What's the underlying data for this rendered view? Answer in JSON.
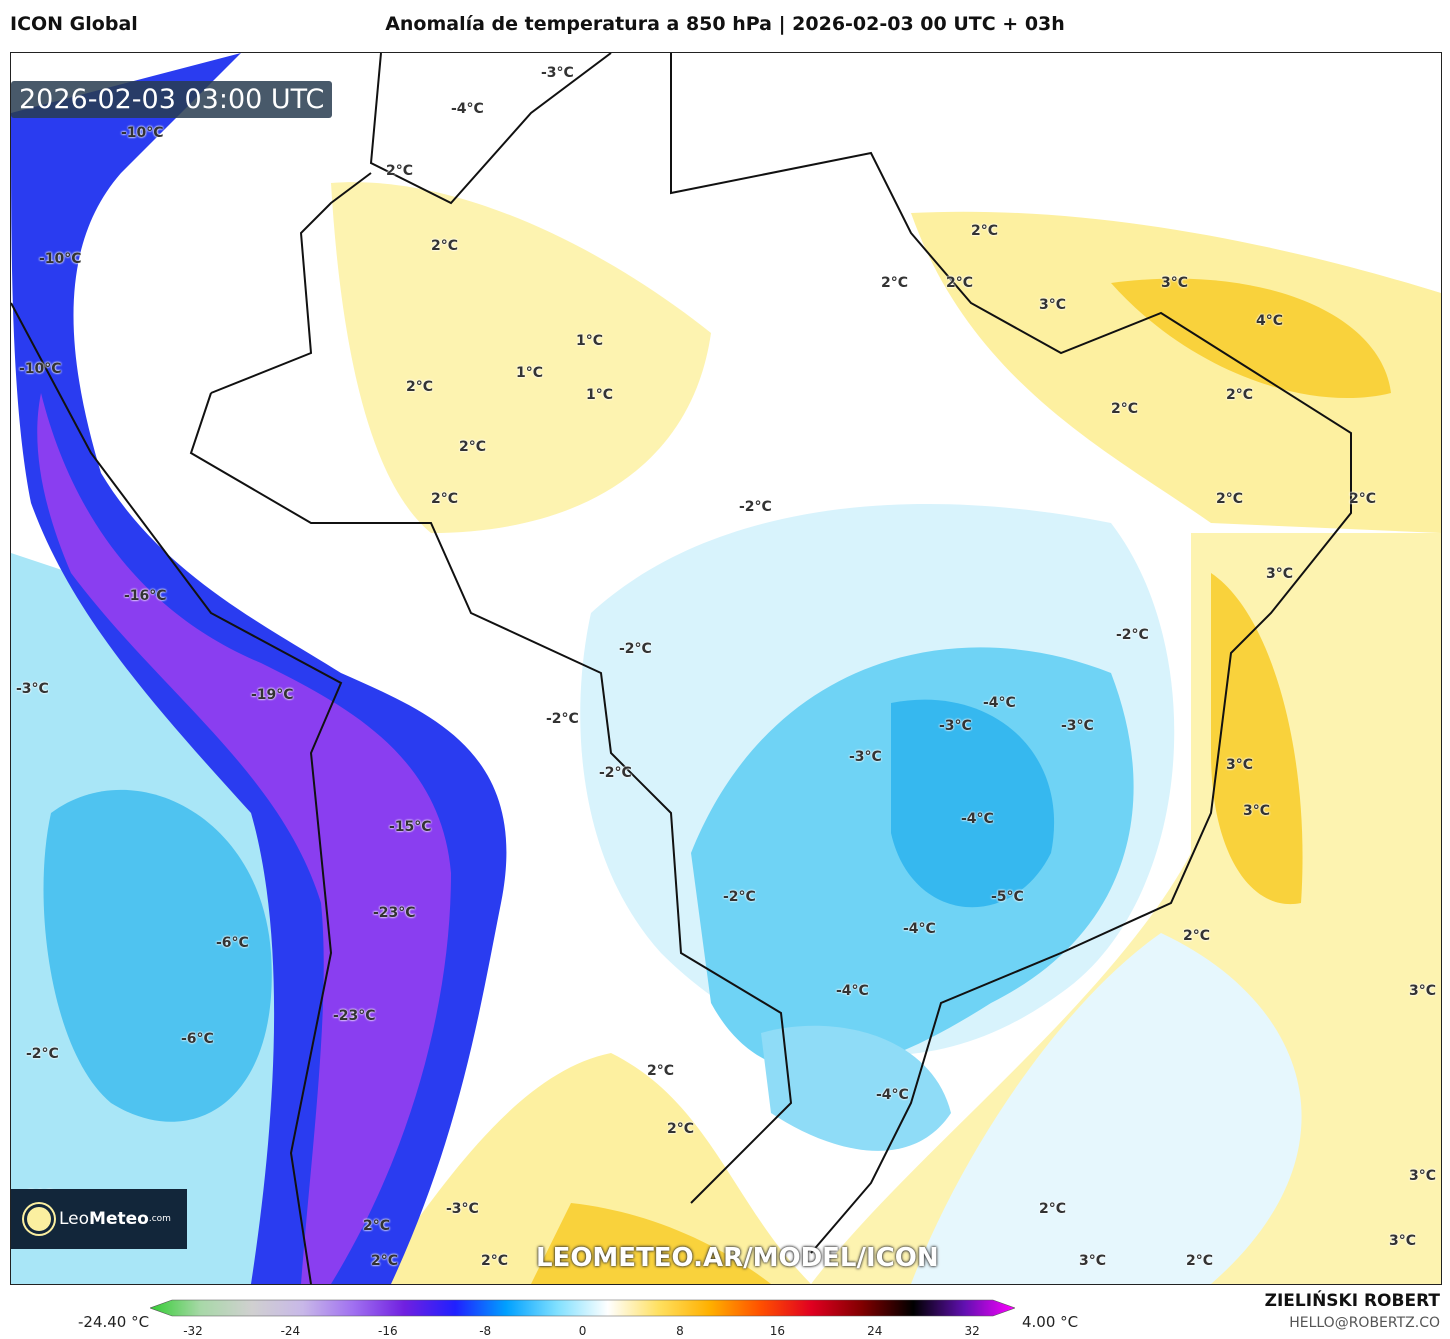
{
  "header": {
    "model": "ICON Global",
    "title": "Anomalía de temperatura a 850 hPa | 2026-02-03 00 UTC + 03h"
  },
  "map": {
    "timestamp": "2026-02-03 03:00 UTC",
    "watermark": "LEOMETEO.AR/MODEL/ICON",
    "logo": {
      "text_light": "Leo",
      "text_bold": "Meteo",
      "suffix": ".com"
    },
    "labels": [
      "-3°C",
      "-4°C",
      "-10°C",
      "2°C",
      "2°C",
      "-10°C",
      "-10°C",
      "1°C",
      "1°C",
      "1°C",
      "2°C",
      "2°C",
      "2°C",
      "2°C",
      "2°C",
      "2°C",
      "3°C",
      "3°C",
      "4°C",
      "2°C",
      "2°C",
      "2°C",
      "2°C",
      "-2°C",
      "-16°C",
      "3°C",
      "-2°C",
      "-2°C",
      "-3°C",
      "-19°C",
      "-2°C",
      "-4°C",
      "-3°C",
      "-3°C",
      "-2°C",
      "-3°C",
      "3°C",
      "-15°C",
      "-4°C",
      "3°C",
      "-2°C",
      "-5°C",
      "-23°C",
      "-6°C",
      "-4°C",
      "2°C",
      "-4°C",
      "-23°C",
      "3°C",
      "-6°C",
      "-2°C",
      "2°C",
      "-4°C",
      "2°C",
      "-3°C",
      "2°C",
      "2°C",
      "2°C",
      "2°C",
      "3°C",
      "3°C",
      "2°C",
      "3°C",
      "-2°C"
    ]
  },
  "colorbar": {
    "min_label": "-24.40 °C",
    "max_label": "4.00 °C",
    "ticks": [
      "-32",
      "-24",
      "-16",
      "-8",
      "0",
      "8",
      "16",
      "24",
      "32"
    ],
    "colors": [
      "#33cc33",
      "#a8d8a8",
      "#d0d0d0",
      "#c8b8e8",
      "#a070f0",
      "#7020e0",
      "#2020ff",
      "#00a0ff",
      "#80e0ff",
      "#ffffff",
      "#ffe060",
      "#ffb000",
      "#ff5000",
      "#e00020",
      "#800000",
      "#000000",
      "#6010b0",
      "#ff00ff"
    ]
  },
  "footer": {
    "author": "ZIELIŃSKI ROBERT",
    "email": "HELLO@ROBERTZ.CO"
  }
}
